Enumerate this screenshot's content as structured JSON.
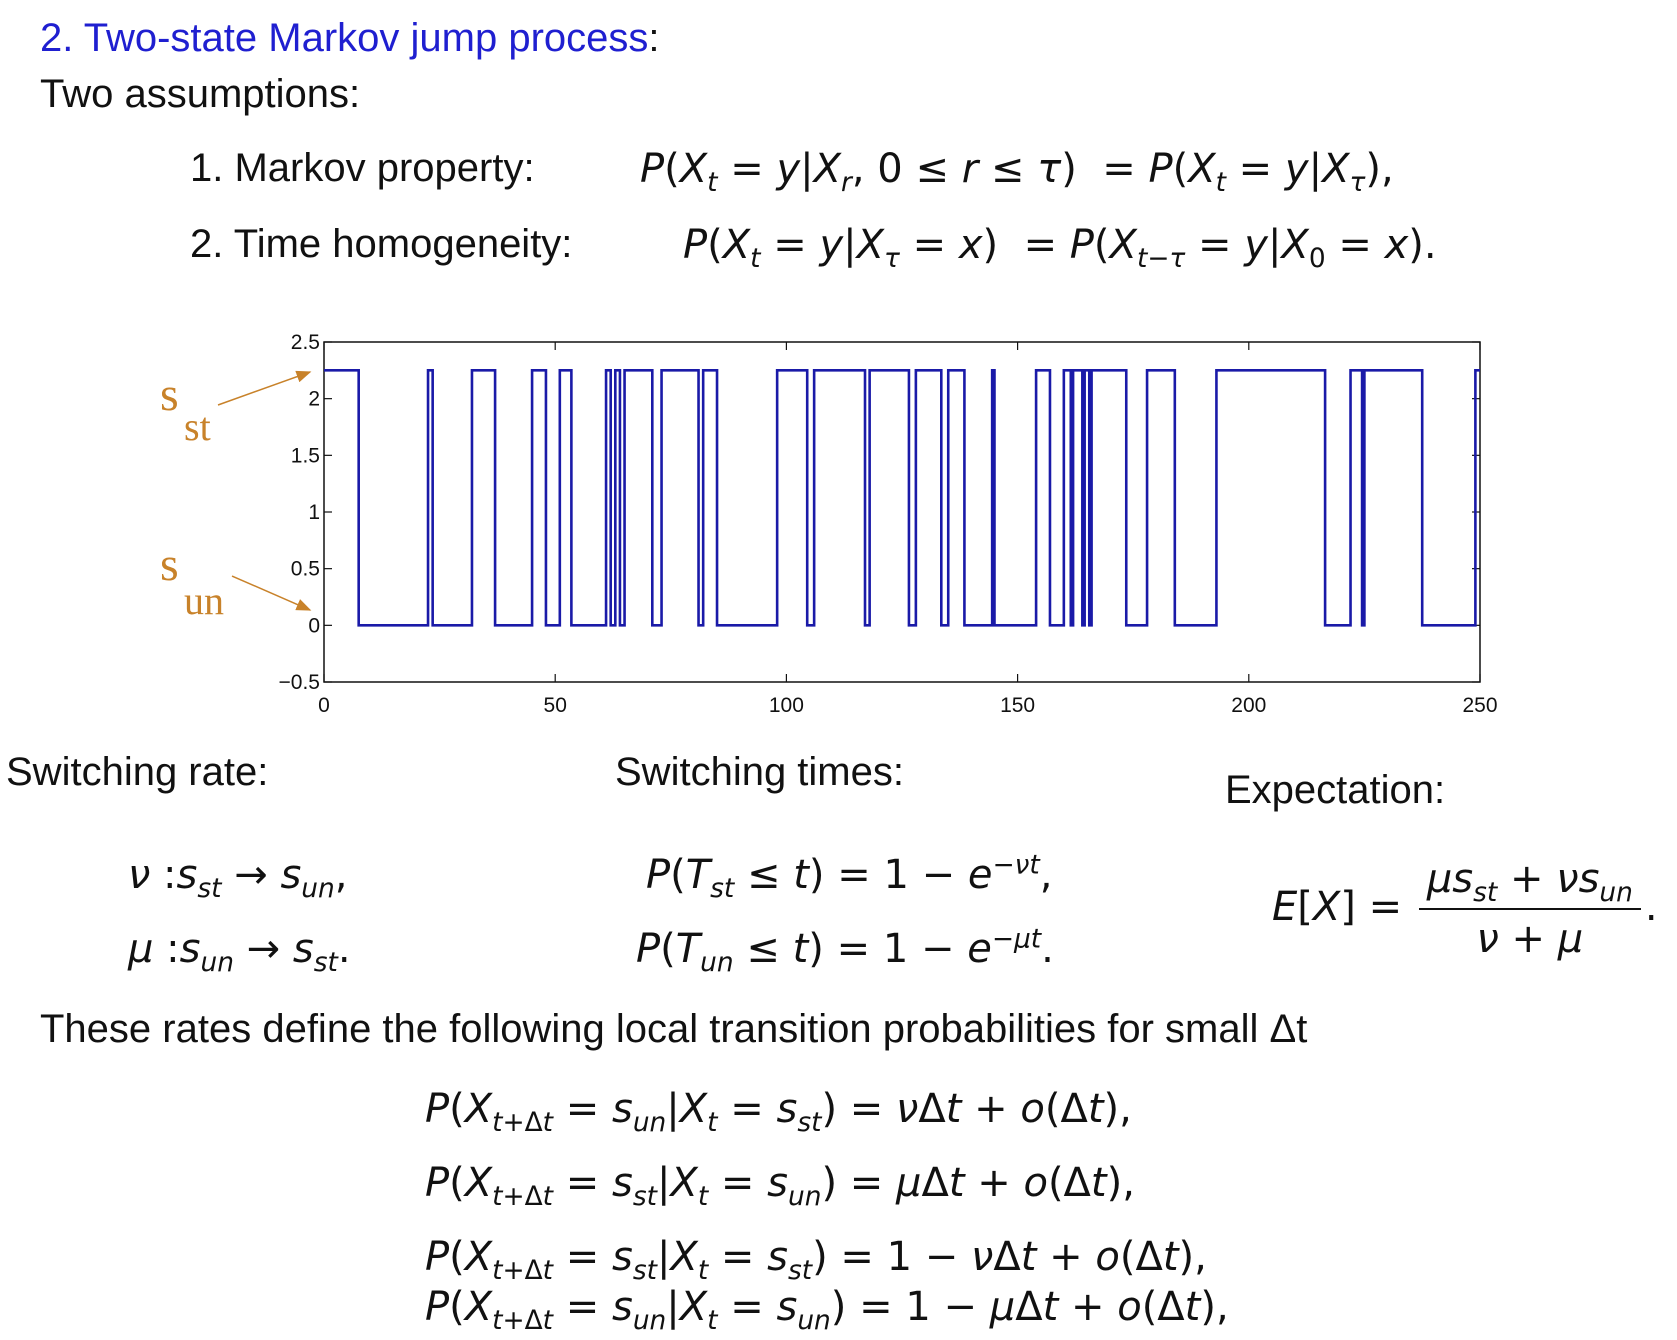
{
  "heading": {
    "number": "2.",
    "title": "Two-state Markov jump process",
    "colon": ":"
  },
  "assumptions_intro": "Two assumptions:",
  "assumptions": [
    {
      "label": "1. Markov property:"
    },
    {
      "label": "2. Time homogeneity:"
    }
  ],
  "state_labels": {
    "st": {
      "main": "s",
      "sub": "st"
    },
    "un": {
      "main": "s",
      "sub": "un"
    }
  },
  "sections": {
    "switching_rate": "Switching rate:",
    "switching_times": "Switching times:",
    "expectation": "Expectation:"
  },
  "transition_intro": "These rates define the following local transition probabilities for small Δt",
  "colors": {
    "heading": "#1f1fd0",
    "trace": "#1a1aa8",
    "annotation": "#c8822a"
  },
  "chart_data": {
    "type": "line",
    "step": true,
    "xlim": [
      0,
      250
    ],
    "ylim": [
      -0.5,
      2.5
    ],
    "x_ticks": [
      "0",
      "50",
      "100",
      "150",
      "200",
      "250"
    ],
    "y_ticks": [
      "−0.5",
      "0",
      "0.5",
      "1",
      "1.5",
      "2",
      "2.5"
    ],
    "levels": {
      "high": 2.25,
      "low": 0
    },
    "series": [
      {
        "high_intervals": [
          [
            0,
            7.5
          ],
          [
            22.5,
            23.5
          ],
          [
            32,
            37
          ],
          [
            45,
            48
          ],
          [
            51,
            53.5
          ],
          [
            61,
            62
          ],
          [
            63,
            64
          ],
          [
            65,
            71
          ],
          [
            73,
            81
          ],
          [
            82,
            85
          ],
          [
            98,
            104.5
          ],
          [
            106,
            117
          ],
          [
            118,
            126.5
          ],
          [
            128,
            133.5
          ],
          [
            135,
            138.5
          ],
          [
            144.5,
            145
          ],
          [
            154,
            157
          ],
          [
            160,
            161.5
          ],
          [
            162,
            164
          ],
          [
            164.5,
            165.5
          ],
          [
            166,
            173.5
          ],
          [
            178,
            184
          ],
          [
            193,
            216.5
          ],
          [
            222,
            224.5
          ],
          [
            225,
            237.5
          ],
          [
            249,
            250
          ]
        ]
      }
    ]
  }
}
